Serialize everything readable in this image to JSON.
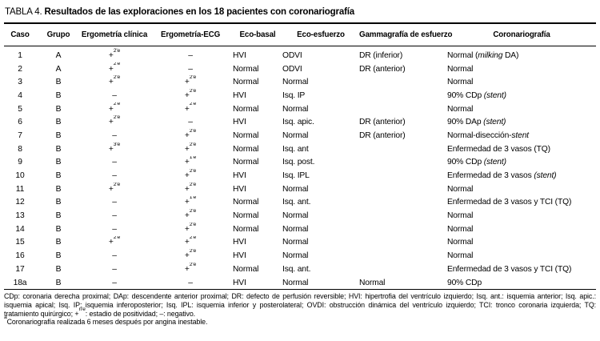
{
  "title": {
    "label": "TABLA 4.",
    "text": "Resultados de las exploraciones en los 18 pacientes con coronariografía"
  },
  "table": {
    "columns": [
      "Caso",
      "Grupo",
      "Ergometría clínica",
      "Ergometría-ECG",
      "Eco-basal",
      "Eco-esfuerzo",
      "Gammagrafía de esfuerzo",
      "Coronariografía"
    ],
    "rows": [
      [
        "1",
        "A",
        "+^{2'e}",
        "–",
        "HVI",
        "ODVI",
        "DR (inferior)",
        "Normal (*milking* DA)"
      ],
      [
        "2",
        "A",
        "+^{2'e}",
        "–",
        "Normal",
        "ODVI",
        "DR (anterior)",
        "Normal"
      ],
      [
        "3",
        "B",
        "+^{2'e}",
        "+^{2'e}",
        "Normal",
        "Normal",
        "",
        "Normal"
      ],
      [
        "4",
        "B",
        "–",
        "+^{2'e}",
        "HVI",
        "Isq. IP",
        "",
        "90% CDp *(stent)*"
      ],
      [
        "5",
        "B",
        "+^{2'e}",
        "+^{2'e}",
        "Normal",
        "Normal",
        "",
        "Normal"
      ],
      [
        "6",
        "B",
        "+^{2'e}",
        "–",
        "HVI",
        "Isq. apic.",
        "DR (anterior)",
        "90% DAp *(stent)*"
      ],
      [
        "7",
        "B",
        "–",
        "+^{2'e}",
        "Normal",
        "Normal",
        "DR (anterior)",
        "Normal-disección-*stent*"
      ],
      [
        "8",
        "B",
        "+^{3'e}",
        "+^{2'e}",
        "Normal",
        "Isq. ant",
        "",
        "Enfermedad de 3 vasos (TQ)"
      ],
      [
        "9",
        "B",
        "–",
        "+^{1'e}",
        "Normal",
        "Isq. post.",
        "",
        "90% CDp *(stent)*"
      ],
      [
        "10",
        "B",
        "–",
        "+^{2'e}",
        "HVI",
        "Isq. IPL",
        "",
        "Enfermedad de 3 vasos *(stent)*"
      ],
      [
        "11",
        "B",
        "+^{2'e}",
        "+^{2'e}",
        "HVI",
        "Normal",
        "",
        "Normal"
      ],
      [
        "12",
        "B",
        "–",
        "+^{1'e}",
        "Normal",
        "Isq. ant.",
        "",
        "Enfermedad de 3 vasos y TCI (TQ)"
      ],
      [
        "13",
        "B",
        "–",
        "+^{2'e}",
        "Normal",
        "Normal",
        "",
        "Normal"
      ],
      [
        "14",
        "B",
        "–",
        "+^{2'e}",
        "Normal",
        "Normal",
        "",
        "Normal"
      ],
      [
        "15",
        "B",
        "+^{2'e}",
        "+^{2'e}",
        "HVI",
        "Normal",
        "",
        "Normal"
      ],
      [
        "16",
        "B",
        "–",
        "+^{2'e}",
        "HVI",
        "Normal",
        "",
        "Normal"
      ],
      [
        "17",
        "B",
        "–",
        "+^{2'e}",
        "Normal",
        "Isq. ant.",
        "",
        "Enfermedad de 3 vasos y TCI (TQ)"
      ],
      [
        "18a",
        "B",
        "–",
        "–",
        "HVI",
        "Normal",
        "Normal",
        "90% CDp"
      ]
    ]
  },
  "footnotes": {
    "abbreviations": "CDp: coronaria derecha proximal; DAp: descendente anterior proximal; DR: defecto de perfusión reversible; HVI: hipertrofia del ventrículo izquierdo; Isq. ant.: isquemia anterior; Isq. apic.: isquemia apical; Isq. IP: isquemia inferoposterior; Isq. IPL: isquemia inferior y posterolateral; OVDI: obstrucción dinámica del ventrículo izquierdo; TCI: tronco coronaria izquierda; TQ: tratamiento quirúrgico; +^{n'e}: estadio de positividad; –: negativo.",
    "case_note": "^{a}Coronariografía realizada 6 meses después por angina inestable."
  },
  "colors": {
    "background": "#ffffff",
    "text": "#000000",
    "rule": "#000000"
  }
}
